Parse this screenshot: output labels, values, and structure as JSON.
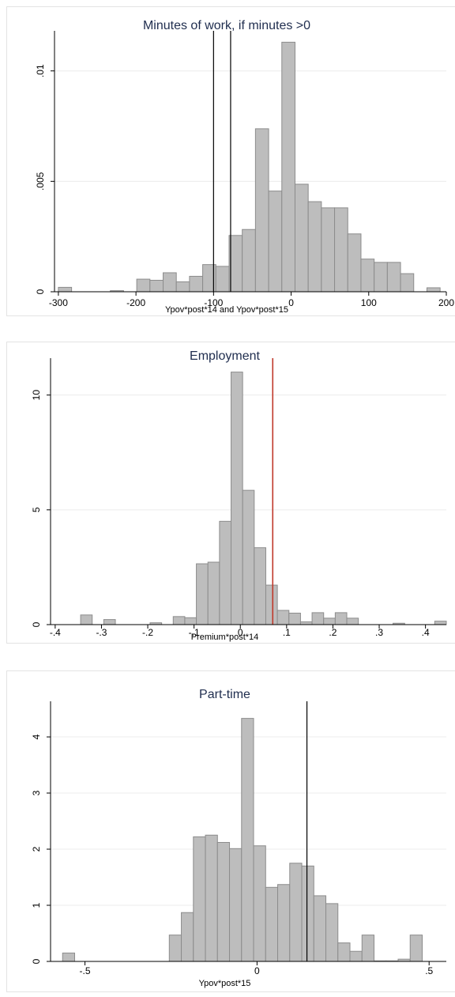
{
  "colors": {
    "bar_fill": "#bdbdbd",
    "bar_stroke": "#8c8c8c",
    "grid": "#ececec",
    "title": "#1f2d4e",
    "red_line": "#c0392b"
  },
  "chart_data": [
    {
      "type": "bar",
      "title": "Minutes of work, if minutes >0",
      "xlabel": "Ypov*post*14 and Ypov*post*15",
      "ylabel": "",
      "xlim": [
        -305,
        200
      ],
      "ylim": [
        0,
        0.0116
      ],
      "xticks": [
        -300,
        -200,
        -100,
        0,
        100,
        200
      ],
      "xtick_labels": [
        "-300",
        "-200",
        "-100",
        "0",
        "100",
        "200"
      ],
      "yticks": [
        0,
        0.005,
        0.01
      ],
      "ytick_labels": [
        "0",
        ".005",
        ".01"
      ],
      "grid": true,
      "vlines": [
        {
          "x": -100,
          "color": "#000000"
        },
        {
          "x": -78,
          "color": "#000000"
        }
      ],
      "bars": [
        {
          "x0": -300,
          "x1": -283,
          "y": 0.0002
        },
        {
          "x0": -233,
          "x1": -216,
          "y": 5e-05
        },
        {
          "x0": -199,
          "x1": -182,
          "y": 0.00057
        },
        {
          "x0": -182,
          "x1": -165,
          "y": 0.00052
        },
        {
          "x0": -165,
          "x1": -148,
          "y": 0.00086
        },
        {
          "x0": -148,
          "x1": -131,
          "y": 0.00045
        },
        {
          "x0": -131,
          "x1": -114,
          "y": 0.0007
        },
        {
          "x0": -114,
          "x1": -97,
          "y": 0.00123
        },
        {
          "x0": -97,
          "x1": -80,
          "y": 0.00115
        },
        {
          "x0": -80,
          "x1": -63,
          "y": 0.00255
        },
        {
          "x0": -63,
          "x1": -46,
          "y": 0.00282
        },
        {
          "x0": -46,
          "x1": -29,
          "y": 0.00738
        },
        {
          "x0": -29,
          "x1": -12,
          "y": 0.00456
        },
        {
          "x0": -12,
          "x1": 5,
          "y": 0.0113
        },
        {
          "x0": 5,
          "x1": 22,
          "y": 0.00487
        },
        {
          "x0": 22,
          "x1": 39,
          "y": 0.00408
        },
        {
          "x0": 39,
          "x1": 56,
          "y": 0.0038
        },
        {
          "x0": 56,
          "x1": 73,
          "y": 0.0038
        },
        {
          "x0": 73,
          "x1": 90,
          "y": 0.00262
        },
        {
          "x0": 90,
          "x1": 107,
          "y": 0.00148
        },
        {
          "x0": 107,
          "x1": 124,
          "y": 0.00133
        },
        {
          "x0": 124,
          "x1": 141,
          "y": 0.00133
        },
        {
          "x0": 141,
          "x1": 158,
          "y": 0.00082
        },
        {
          "x0": 175,
          "x1": 192,
          "y": 0.00018
        }
      ]
    },
    {
      "type": "bar",
      "title": "Employment",
      "xlabel": "Premium*post*14",
      "ylabel": "",
      "xlim": [
        -0.41,
        0.445
      ],
      "ylim": [
        0,
        11.4
      ],
      "xticks": [
        -0.4,
        -0.3,
        -0.2,
        -0.1,
        0,
        0.1,
        0.2,
        0.3,
        0.4
      ],
      "xtick_labels": [
        "-.4",
        "-.3",
        "-.2",
        "-.1",
        "0",
        ".1",
        ".2",
        ".3",
        ".4"
      ],
      "yticks": [
        0,
        5,
        10
      ],
      "ytick_labels": [
        "0",
        "5",
        "10"
      ],
      "grid": true,
      "vlines": [
        {
          "x": 0.07,
          "color": "#c0392b"
        }
      ],
      "bars": [
        {
          "x0": -0.345,
          "x1": -0.32,
          "y": 0.42
        },
        {
          "x0": -0.295,
          "x1": -0.27,
          "y": 0.22
        },
        {
          "x0": -0.195,
          "x1": -0.17,
          "y": 0.08
        },
        {
          "x0": -0.145,
          "x1": -0.12,
          "y": 0.35
        },
        {
          "x0": -0.12,
          "x1": -0.095,
          "y": 0.3
        },
        {
          "x0": -0.095,
          "x1": -0.07,
          "y": 2.65
        },
        {
          "x0": -0.07,
          "x1": -0.045,
          "y": 2.72
        },
        {
          "x0": -0.045,
          "x1": -0.02,
          "y": 4.5
        },
        {
          "x0": -0.02,
          "x1": 0.005,
          "y": 11.0
        },
        {
          "x0": 0.005,
          "x1": 0.03,
          "y": 5.85
        },
        {
          "x0": 0.03,
          "x1": 0.055,
          "y": 3.35
        },
        {
          "x0": 0.055,
          "x1": 0.08,
          "y": 1.72
        },
        {
          "x0": 0.08,
          "x1": 0.105,
          "y": 0.62
        },
        {
          "x0": 0.105,
          "x1": 0.13,
          "y": 0.5
        },
        {
          "x0": 0.13,
          "x1": 0.155,
          "y": 0.12
        },
        {
          "x0": 0.155,
          "x1": 0.18,
          "y": 0.52
        },
        {
          "x0": 0.18,
          "x1": 0.205,
          "y": 0.28
        },
        {
          "x0": 0.205,
          "x1": 0.23,
          "y": 0.52
        },
        {
          "x0": 0.23,
          "x1": 0.255,
          "y": 0.28
        },
        {
          "x0": 0.33,
          "x1": 0.355,
          "y": 0.06
        },
        {
          "x0": 0.42,
          "x1": 0.445,
          "y": 0.15
        }
      ]
    },
    {
      "type": "bar",
      "title": "Part-time",
      "xlabel": "Ypov*post*15",
      "ylabel": "",
      "xlim": [
        -0.6,
        0.55
      ],
      "ylim": [
        0,
        4.55
      ],
      "xticks": [
        -0.5,
        0,
        0.5
      ],
      "xtick_labels": [
        "-.5",
        "0",
        ".5"
      ],
      "yticks": [
        0,
        1,
        2,
        3,
        4
      ],
      "ytick_labels": [
        "0",
        "1",
        "2",
        "3",
        "4"
      ],
      "grid": true,
      "vlines": [
        {
          "x": 0.145,
          "color": "#000000"
        }
      ],
      "bars": [
        {
          "x0": -0.565,
          "x1": -0.53,
          "y": 0.15
        },
        {
          "x0": -0.255,
          "x1": -0.22,
          "y": 0.47
        },
        {
          "x0": -0.22,
          "x1": -0.185,
          "y": 0.87
        },
        {
          "x0": -0.185,
          "x1": -0.15,
          "y": 2.22
        },
        {
          "x0": -0.15,
          "x1": -0.115,
          "y": 2.25
        },
        {
          "x0": -0.115,
          "x1": -0.08,
          "y": 2.12
        },
        {
          "x0": -0.08,
          "x1": -0.045,
          "y": 2.01
        },
        {
          "x0": -0.045,
          "x1": -0.01,
          "y": 4.33
        },
        {
          "x0": -0.01,
          "x1": 0.025,
          "y": 2.06
        },
        {
          "x0": 0.025,
          "x1": 0.06,
          "y": 1.32
        },
        {
          "x0": 0.06,
          "x1": 0.095,
          "y": 1.37
        },
        {
          "x0": 0.095,
          "x1": 0.13,
          "y": 1.75
        },
        {
          "x0": 0.13,
          "x1": 0.165,
          "y": 1.7
        },
        {
          "x0": 0.165,
          "x1": 0.2,
          "y": 1.17
        },
        {
          "x0": 0.2,
          "x1": 0.235,
          "y": 1.03
        },
        {
          "x0": 0.235,
          "x1": 0.27,
          "y": 0.33
        },
        {
          "x0": 0.27,
          "x1": 0.305,
          "y": 0.18
        },
        {
          "x0": 0.305,
          "x1": 0.34,
          "y": 0.47
        },
        {
          "x0": 0.34,
          "x1": 0.375,
          "y": 0.01
        },
        {
          "x0": 0.375,
          "x1": 0.41,
          "y": 0.01
        },
        {
          "x0": 0.41,
          "x1": 0.445,
          "y": 0.04
        },
        {
          "x0": 0.445,
          "x1": 0.48,
          "y": 0.47
        }
      ]
    }
  ]
}
